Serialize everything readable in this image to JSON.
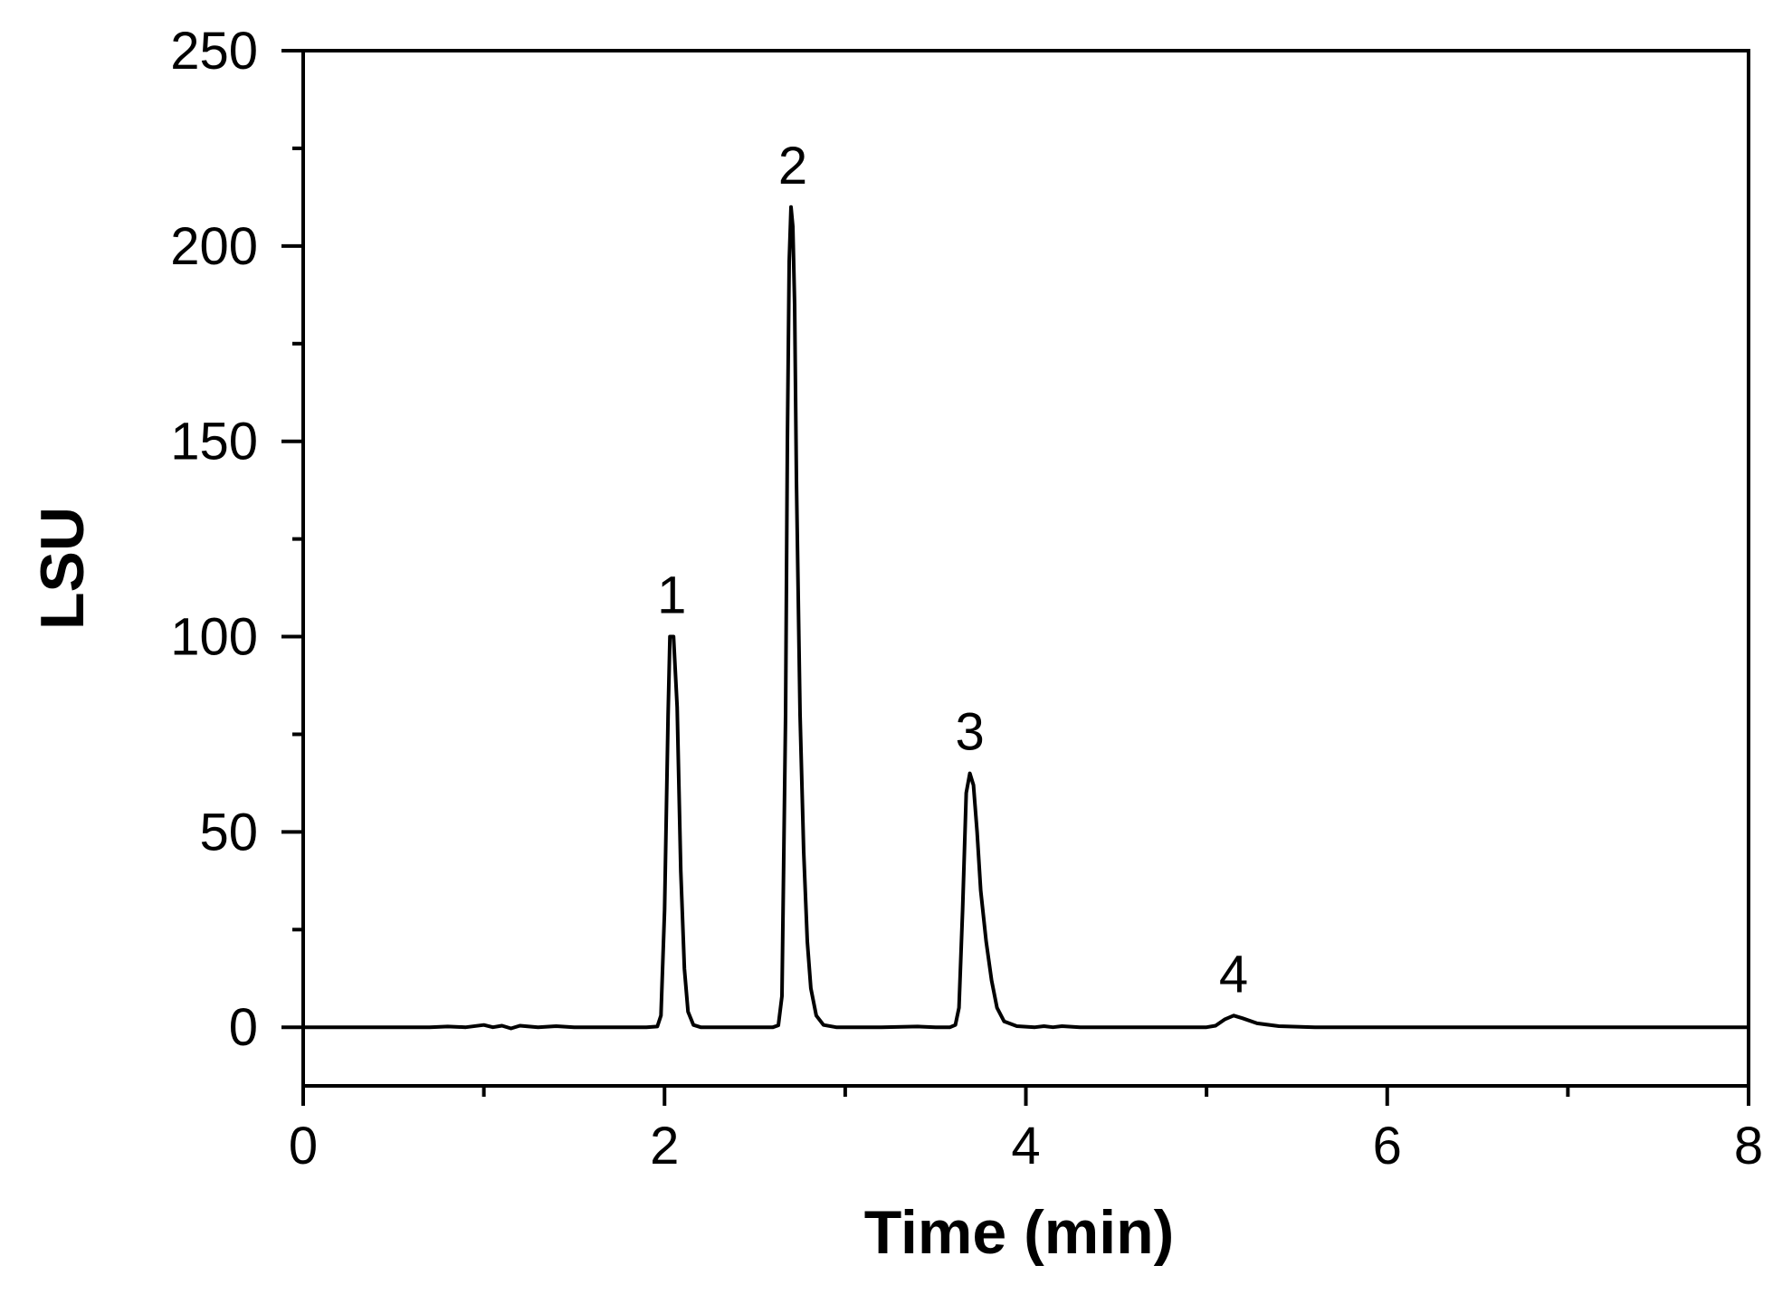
{
  "chart_data": {
    "type": "line",
    "title": "",
    "xlabel": "Time (min)",
    "ylabel": "LSU",
    "xlim": [
      0,
      8
    ],
    "ylim": [
      -15,
      250
    ],
    "x_ticks": [
      "0",
      "2",
      "4",
      "6",
      "8"
    ],
    "y_ticks": [
      "0",
      "50",
      "100",
      "150",
      "200",
      "250"
    ],
    "x_tick_values": [
      0,
      2,
      4,
      6,
      8
    ],
    "y_tick_values": [
      0,
      50,
      100,
      150,
      200,
      250
    ],
    "x_minor_tick_values": [
      1,
      3,
      5,
      7
    ],
    "y_minor_tick_values": [
      25,
      75,
      125,
      175,
      225
    ],
    "grid": false,
    "series": [
      {
        "color": "#000000",
        "points": [
          [
            0.0,
            0.0
          ],
          [
            0.7,
            0.0
          ],
          [
            0.8,
            0.2
          ],
          [
            0.9,
            0.0
          ],
          [
            1.0,
            0.6
          ],
          [
            1.05,
            0.0
          ],
          [
            1.1,
            0.4
          ],
          [
            1.15,
            -0.3
          ],
          [
            1.2,
            0.4
          ],
          [
            1.3,
            0.0
          ],
          [
            1.4,
            0.3
          ],
          [
            1.5,
            0.0
          ],
          [
            1.9,
            0.0
          ],
          [
            1.96,
            0.2
          ],
          [
            1.98,
            3.0
          ],
          [
            2.0,
            30.0
          ],
          [
            2.02,
            80.0
          ],
          [
            2.03,
            100.0
          ],
          [
            2.05,
            100.0
          ],
          [
            2.07,
            82.0
          ],
          [
            2.09,
            40.0
          ],
          [
            2.11,
            15.0
          ],
          [
            2.13,
            4.0
          ],
          [
            2.16,
            0.6
          ],
          [
            2.2,
            0.0
          ],
          [
            2.6,
            0.0
          ],
          [
            2.63,
            0.5
          ],
          [
            2.65,
            8.0
          ],
          [
            2.67,
            80.0
          ],
          [
            2.68,
            150.0
          ],
          [
            2.69,
            196.0
          ],
          [
            2.7,
            210.0
          ],
          [
            2.71,
            205.0
          ],
          [
            2.72,
            185.0
          ],
          [
            2.73,
            140.0
          ],
          [
            2.75,
            80.0
          ],
          [
            2.77,
            45.0
          ],
          [
            2.79,
            22.0
          ],
          [
            2.81,
            10.0
          ],
          [
            2.84,
            3.0
          ],
          [
            2.88,
            0.6
          ],
          [
            2.95,
            0.0
          ],
          [
            3.2,
            0.0
          ],
          [
            3.4,
            0.2
          ],
          [
            3.5,
            0.0
          ],
          [
            3.58,
            0.0
          ],
          [
            3.61,
            0.6
          ],
          [
            3.63,
            5.0
          ],
          [
            3.65,
            30.0
          ],
          [
            3.67,
            60.0
          ],
          [
            3.69,
            65.0
          ],
          [
            3.71,
            62.0
          ],
          [
            3.73,
            50.0
          ],
          [
            3.75,
            35.0
          ],
          [
            3.78,
            22.0
          ],
          [
            3.81,
            12.0
          ],
          [
            3.84,
            5.0
          ],
          [
            3.88,
            1.5
          ],
          [
            3.95,
            0.3
          ],
          [
            4.05,
            0.0
          ],
          [
            4.1,
            0.3
          ],
          [
            4.15,
            0.0
          ],
          [
            4.2,
            0.3
          ],
          [
            4.3,
            0.0
          ],
          [
            5.0,
            0.0
          ],
          [
            5.05,
            0.4
          ],
          [
            5.1,
            2.0
          ],
          [
            5.15,
            3.0
          ],
          [
            5.2,
            2.3
          ],
          [
            5.28,
            1.0
          ],
          [
            5.4,
            0.3
          ],
          [
            5.6,
            0.0
          ],
          [
            8.0,
            0.0
          ]
        ]
      }
    ],
    "annotations": [
      {
        "text": "1",
        "x": 2.04,
        "y": 106
      },
      {
        "text": "2",
        "x": 2.71,
        "y": 216
      },
      {
        "text": "3",
        "x": 3.69,
        "y": 71
      },
      {
        "text": "4",
        "x": 5.15,
        "y": 9
      }
    ]
  }
}
